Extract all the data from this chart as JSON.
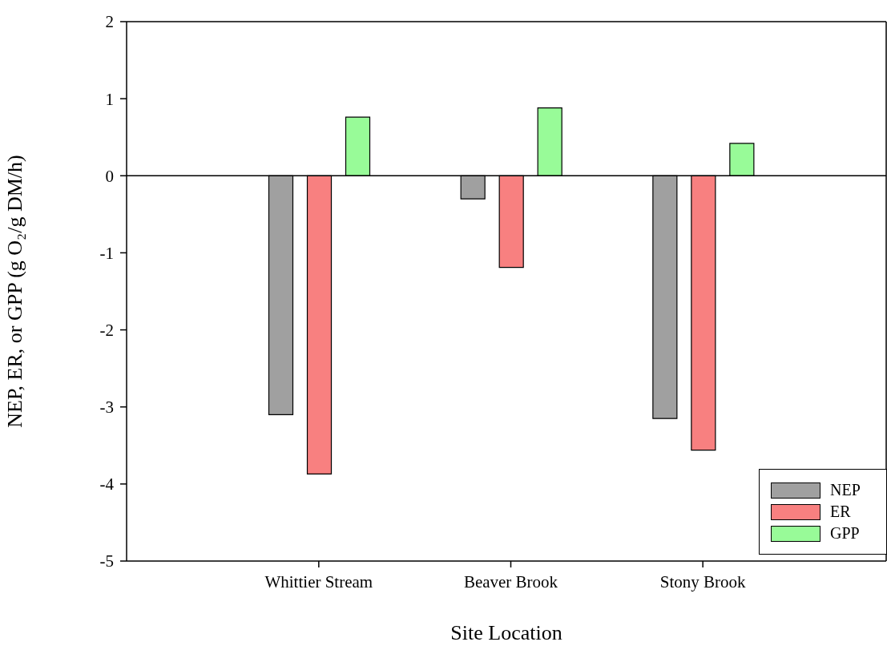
{
  "chart_data": {
    "type": "bar",
    "xlabel": "Site Location",
    "ylabel": "NEP, ER, or GPP (g O₂/g DM/h)",
    "categories": [
      "Whittier Stream",
      "Beaver Brook",
      "Stony Brook"
    ],
    "series": [
      {
        "name": "NEP",
        "color": "#a0a0a0",
        "values": [
          -3.1,
          -0.3,
          -3.15
        ]
      },
      {
        "name": "ER",
        "color": "#f88080",
        "values": [
          -3.87,
          -1.19,
          -3.56
        ]
      },
      {
        "name": "GPP",
        "color": "#98fb98",
        "values": [
          0.76,
          0.88,
          0.42
        ]
      }
    ],
    "ylim": [
      -5,
      2
    ],
    "yticks": [
      -5,
      -4,
      -3,
      -2,
      -1,
      0,
      1,
      2
    ],
    "ref_lines": [
      {
        "axis": "y",
        "value": 0
      }
    ],
    "grid": false,
    "legend": "bottom right"
  }
}
